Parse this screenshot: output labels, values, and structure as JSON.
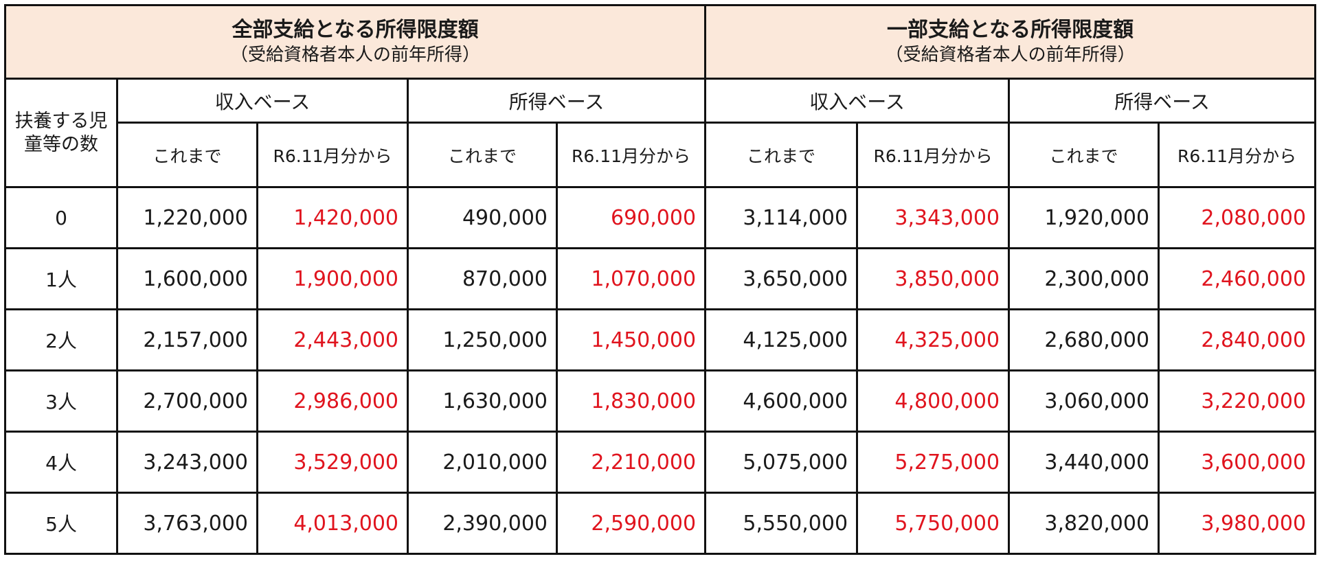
{
  "header": {
    "full": {
      "title": "全部支給となる所得限度額",
      "subtitle": "（受給資格者本人の前年所得）"
    },
    "partial": {
      "title": "一部支給となる所得限度額",
      "subtitle": "（受給資格者本人の前年所得）"
    }
  },
  "row_label_header": "扶養する児童等の数",
  "bases": [
    "収入ベース",
    "所得ベース",
    "収入ベース",
    "所得ベース"
  ],
  "subcols": [
    "これまで",
    "R6.11月分から",
    "これまで",
    "R6.11月分から",
    "これまで",
    "R6.11月分から",
    "これまで",
    "R6.11月分から"
  ],
  "colors": {
    "highlight": "#e0141e",
    "header_bg": "#fbe8da"
  },
  "rows": [
    {
      "count": "0",
      "values": [
        "1,220,000",
        "1,420,000",
        "490,000",
        "690,000",
        "3,114,000",
        "3,343,000",
        "1,920,000",
        "2,080,000"
      ]
    },
    {
      "count": "1人",
      "values": [
        "1,600,000",
        "1,900,000",
        "870,000",
        "1,070,000",
        "3,650,000",
        "3,850,000",
        "2,300,000",
        "2,460,000"
      ]
    },
    {
      "count": "2人",
      "values": [
        "2,157,000",
        "2,443,000",
        "1,250,000",
        "1,450,000",
        "4,125,000",
        "4,325,000",
        "2,680,000",
        "2,840,000"
      ]
    },
    {
      "count": "3人",
      "values": [
        "2,700,000",
        "2,986,000",
        "1,630,000",
        "1,830,000",
        "4,600,000",
        "4,800,000",
        "3,060,000",
        "3,220,000"
      ]
    },
    {
      "count": "4人",
      "values": [
        "3,243,000",
        "3,529,000",
        "2,010,000",
        "2,210,000",
        "5,075,000",
        "5,275,000",
        "3,440,000",
        "3,600,000"
      ]
    },
    {
      "count": "5人",
      "values": [
        "3,763,000",
        "4,013,000",
        "2,390,000",
        "2,590,000",
        "5,550,000",
        "5,750,000",
        "3,820,000",
        "3,980,000"
      ]
    }
  ]
}
